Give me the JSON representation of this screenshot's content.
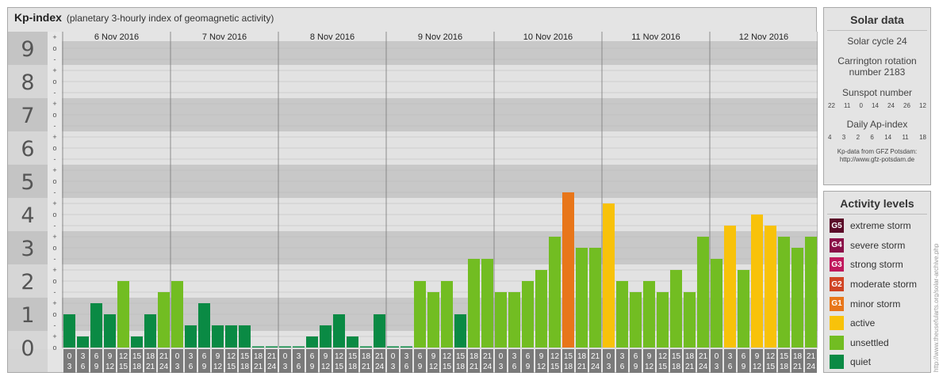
{
  "header": {
    "title": "Kp-index",
    "subtitle": "(planetary 3-hourly index of geomagnetic activity)"
  },
  "chart_data": {
    "type": "bar",
    "ylim": [
      0,
      9
    ],
    "y_ticks": [
      "0",
      "1",
      "2",
      "3",
      "4",
      "5",
      "6",
      "7",
      "8",
      "9"
    ],
    "sub_tick_marks": [
      "-",
      "o",
      "+"
    ],
    "days": [
      "6 Nov 2016",
      "7 Nov 2016",
      "8 Nov 2016",
      "9 Nov 2016",
      "10 Nov 2016",
      "11 Nov 2016",
      "12 Nov 2016"
    ],
    "interval_labels": [
      [
        "0",
        "3"
      ],
      [
        "3",
        "6"
      ],
      [
        "6",
        "9"
      ],
      [
        "9",
        "12"
      ],
      [
        "12",
        "15"
      ],
      [
        "15",
        "18"
      ],
      [
        "18",
        "21"
      ],
      [
        "21",
        "24"
      ]
    ],
    "values": [
      [
        1.0,
        0.333,
        1.333,
        1.0,
        2.0,
        0.333,
        1.0,
        1.667
      ],
      [
        2.0,
        0.667,
        1.333,
        0.667,
        0.667,
        0.667,
        0.0,
        0.0
      ],
      [
        0.0,
        0.0,
        0.333,
        0.667,
        1.0,
        0.333,
        0.0,
        1.0
      ],
      [
        0.0,
        0.0,
        2.0,
        1.667,
        2.0,
        1.0,
        2.667,
        2.667
      ],
      [
        1.667,
        1.667,
        2.0,
        2.333,
        3.333,
        4.667,
        3.0,
        3.0
      ],
      [
        4.333,
        2.0,
        1.667,
        2.0,
        1.667,
        2.333,
        1.667,
        3.333
      ],
      [
        2.667,
        3.667,
        2.333,
        4.0,
        3.667,
        3.333,
        3.0,
        3.333
      ]
    ],
    "level_colors": {
      "quiet": "#0a8a44",
      "unsettled": "#72bd22",
      "active": "#f8c20a",
      "minor": "#e8761a",
      "moderate": "#d04424",
      "strong": "#c0185c",
      "severe": "#8a1048",
      "extreme": "#5a0a28"
    },
    "grid": true
  },
  "solar": {
    "title": "Solar data",
    "cycle": "Solar cycle 24",
    "carrington_line1": "Carrington rotation",
    "carrington_line2": "number 2183",
    "sunspot_title": "Sunspot number",
    "sunspot_values": [
      "22",
      "11",
      "0",
      "14",
      "24",
      "26",
      "12"
    ],
    "ap_title": "Daily Ap-index",
    "ap_values": [
      "4",
      "3",
      "2",
      "6",
      "14",
      "11",
      "18"
    ],
    "credit_line1": "Kp-data from GFZ Potsdam:",
    "credit_line2": "http://www.gfz-potsdam.de"
  },
  "activity": {
    "title": "Activity levels",
    "items": [
      {
        "code": "G5",
        "label": "extreme storm",
        "color": "#5a0a28"
      },
      {
        "code": "G4",
        "label": "severe storm",
        "color": "#8a1048"
      },
      {
        "code": "G3",
        "label": "strong storm",
        "color": "#c0185c"
      },
      {
        "code": "G2",
        "label": "moderate storm",
        "color": "#d04424"
      },
      {
        "code": "G1",
        "label": "minor storm",
        "color": "#e8761a"
      },
      {
        "code": "",
        "label": "active",
        "color": "#f8c20a"
      },
      {
        "code": "",
        "label": "unsettled",
        "color": "#72bd22"
      },
      {
        "code": "",
        "label": "quiet",
        "color": "#0a8a44"
      }
    ]
  },
  "side_credit": "http://www.theusefularts.org/solar-archive.php"
}
